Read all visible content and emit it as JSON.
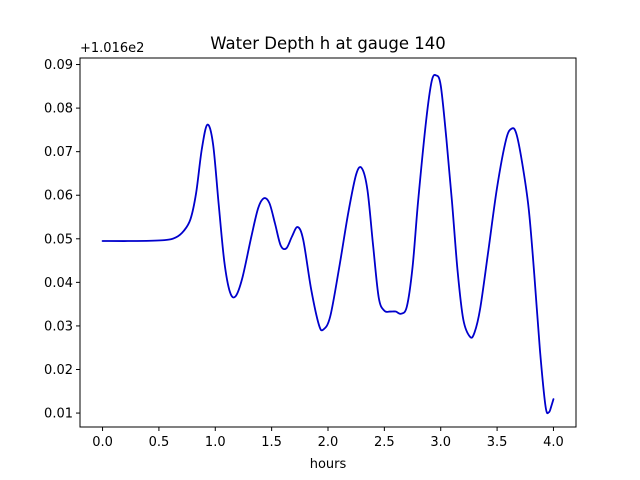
{
  "chart_data": {
    "type": "line",
    "title": "Water Depth h at gauge 140",
    "xlabel": "hours",
    "ylabel": "",
    "y_offset_label": "+1.016e2",
    "xlim": [
      -0.2,
      4.2
    ],
    "ylim": [
      0.0068,
      0.0915
    ],
    "x_ticks": [
      0.0,
      0.5,
      1.0,
      1.5,
      2.0,
      2.5,
      3.0,
      3.5,
      4.0
    ],
    "x_tick_labels": [
      "0.0",
      "0.5",
      "1.0",
      "1.5",
      "2.0",
      "2.5",
      "3.0",
      "3.5",
      "4.0"
    ],
    "y_ticks": [
      0.01,
      0.02,
      0.03,
      0.04,
      0.05,
      0.06,
      0.07,
      0.08,
      0.09
    ],
    "y_tick_labels": [
      "0.01",
      "0.02",
      "0.03",
      "0.04",
      "0.05",
      "0.06",
      "0.07",
      "0.08",
      "0.09"
    ],
    "grid": false,
    "series": [
      {
        "color": "#0000cc",
        "x": [
          0.0,
          0.3,
          0.55,
          0.65,
          0.72,
          0.78,
          0.83,
          0.88,
          0.93,
          0.98,
          1.03,
          1.08,
          1.13,
          1.18,
          1.24,
          1.32,
          1.38,
          1.43,
          1.48,
          1.53,
          1.58,
          1.63,
          1.68,
          1.73,
          1.78,
          1.85,
          1.92,
          1.96,
          2.02,
          2.1,
          2.18,
          2.25,
          2.3,
          2.35,
          2.4,
          2.45,
          2.5,
          2.55,
          2.6,
          2.65,
          2.7,
          2.75,
          2.8,
          2.87,
          2.92,
          2.96,
          3.0,
          3.05,
          3.1,
          3.15,
          3.2,
          3.26,
          3.3,
          3.35,
          3.42,
          3.5,
          3.58,
          3.63,
          3.67,
          3.72,
          3.78,
          3.83,
          3.88,
          3.93,
          3.96,
          3.98,
          4.0
        ],
        "y": [
          0.0495,
          0.0495,
          0.0497,
          0.0503,
          0.0518,
          0.0545,
          0.0605,
          0.0705,
          0.0762,
          0.0718,
          0.058,
          0.0448,
          0.0378,
          0.0368,
          0.041,
          0.0505,
          0.057,
          0.0593,
          0.0582,
          0.0535,
          0.0485,
          0.0478,
          0.0505,
          0.0527,
          0.0498,
          0.0385,
          0.0302,
          0.0292,
          0.0322,
          0.0435,
          0.056,
          0.0648,
          0.0662,
          0.0612,
          0.0485,
          0.0365,
          0.0335,
          0.0333,
          0.0333,
          0.0328,
          0.0345,
          0.0435,
          0.0588,
          0.077,
          0.0862,
          0.0875,
          0.0852,
          0.073,
          0.0585,
          0.0425,
          0.0315,
          0.0275,
          0.0285,
          0.034,
          0.0468,
          0.0618,
          0.0728,
          0.0753,
          0.0742,
          0.0678,
          0.057,
          0.0418,
          0.0245,
          0.0115,
          0.0102,
          0.0115,
          0.0132
        ]
      }
    ]
  }
}
